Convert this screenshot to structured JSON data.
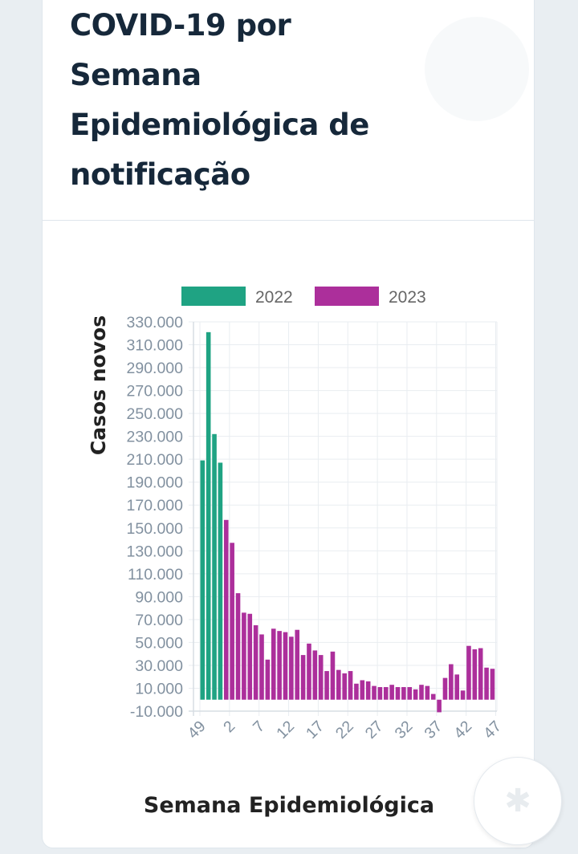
{
  "card": {
    "title": "COVID-19 por Semana Epidemiológica de notificação"
  },
  "chart_data": {
    "type": "bar",
    "legend": [
      {
        "label": "2022",
        "color": "#1fa383"
      },
      {
        "label": "2023",
        "color": "#ac2f9b"
      }
    ],
    "legend_position": "top",
    "ylabel": "Casos novos",
    "xlabel": "Semana Epidemiológica",
    "ylim": [
      -10000,
      330000
    ],
    "y_ticks": [
      "330.000",
      "310.000",
      "290.000",
      "270.000",
      "250.000",
      "230.000",
      "210.000",
      "190.000",
      "170.000",
      "150.000",
      "130.000",
      "110.000",
      "90.000",
      "70.000",
      "50.000",
      "30.000",
      "10.000",
      "-10.000"
    ],
    "x_tick_labels": [
      "49",
      "2",
      "7",
      "12",
      "17",
      "22",
      "27",
      "32",
      "37",
      "42",
      "47"
    ],
    "grid": true,
    "series": [
      {
        "name": "2022",
        "color": "#1fa383",
        "weeks": [
          49,
          50,
          51,
          52
        ],
        "values": [
          209000,
          321000,
          232000,
          207000
        ]
      },
      {
        "name": "2023",
        "color": "#ac2f9b",
        "weeks": [
          1,
          2,
          3,
          4,
          5,
          6,
          7,
          8,
          9,
          10,
          11,
          12,
          13,
          14,
          15,
          16,
          17,
          18,
          19,
          20,
          21,
          22,
          23,
          24,
          25,
          26,
          27,
          28,
          29,
          30,
          31,
          32,
          33,
          34,
          35,
          36,
          37,
          38,
          39,
          40,
          41,
          42,
          43,
          44,
          45,
          46,
          47
        ],
        "values": [
          157000,
          137000,
          93000,
          76000,
          75000,
          65000,
          57000,
          35000,
          62000,
          60000,
          59000,
          55000,
          61000,
          39000,
          49000,
          43000,
          39000,
          25000,
          42000,
          26000,
          23000,
          25000,
          14000,
          17000,
          16000,
          12000,
          11000,
          11000,
          13000,
          11000,
          11000,
          11000,
          9000,
          13000,
          12000,
          5000,
          -11000,
          19000,
          31000,
          22000,
          8000,
          47000,
          44000,
          45000,
          28000,
          27000,
          0
        ]
      }
    ]
  }
}
